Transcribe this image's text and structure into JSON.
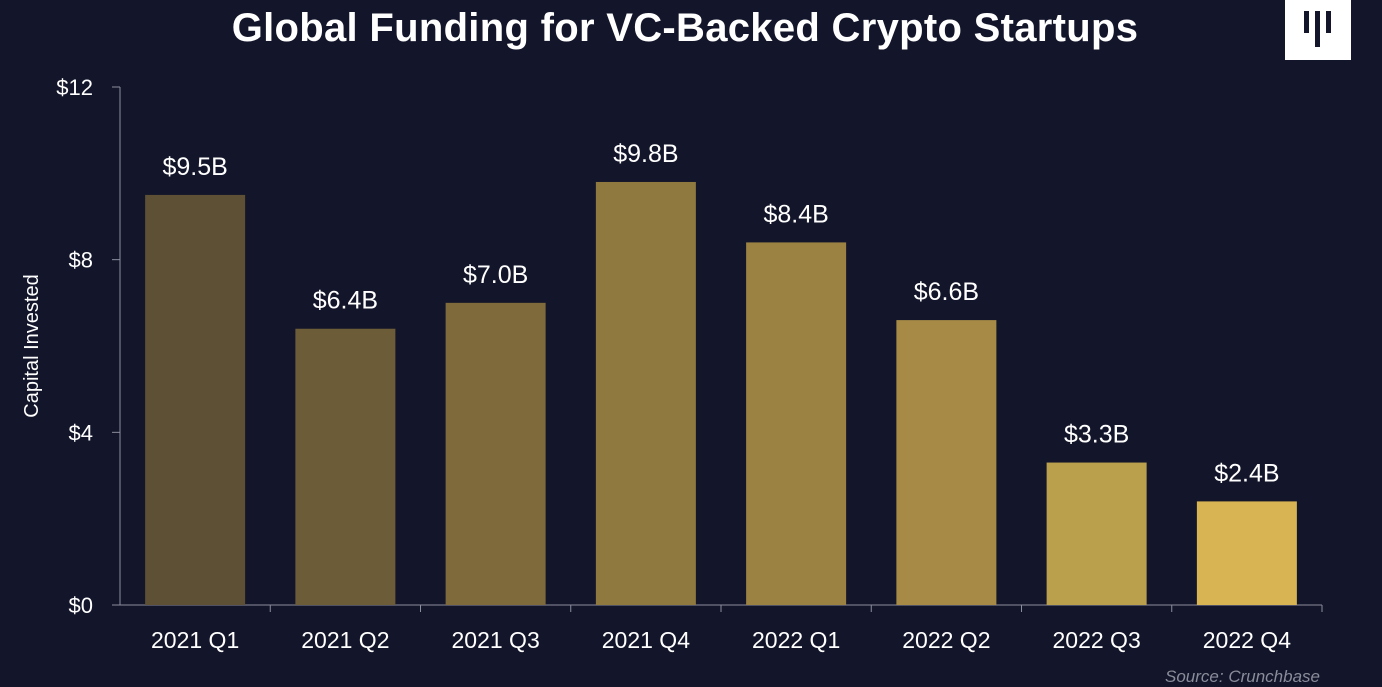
{
  "chart_data": {
    "type": "bar",
    "title": "Global Funding for VC-Backed Crypto Startups",
    "ylabel": "Capital Invested",
    "xlabel": "",
    "categories": [
      "2021 Q1",
      "2021 Q2",
      "2021 Q3",
      "2021 Q4",
      "2022 Q1",
      "2022 Q2",
      "2022 Q3",
      "2022 Q4"
    ],
    "values": [
      9.5,
      6.4,
      7.0,
      9.8,
      8.4,
      6.6,
      3.3,
      2.4
    ],
    "data_labels": [
      "$9.5B",
      "$6.4B",
      "$7.0B",
      "$9.8B",
      "$8.4B",
      "$6.6B",
      "$3.3B",
      "$2.4B"
    ],
    "ylim": [
      0,
      12
    ],
    "yticks": [
      0,
      4,
      8,
      12
    ],
    "ytick_labels": [
      "$0",
      "$4",
      "$8",
      "$12"
    ],
    "bar_colors": [
      "#5d5034",
      "#6c5c37",
      "#7f6a3b",
      "#8f793f",
      "#9b8243",
      "#a68a46",
      "#baa04c",
      "#d8b452"
    ],
    "grid": false,
    "legend": "none"
  },
  "source": "Source: Crunchbase",
  "logo_icon": "brand-bars-icon"
}
